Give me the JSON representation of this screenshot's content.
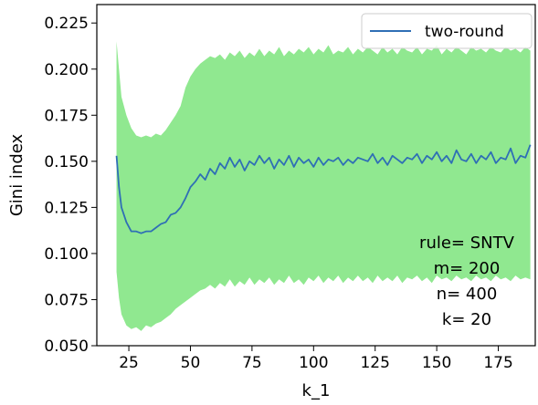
{
  "chart_data": {
    "type": "line",
    "title": "",
    "xlabel": "k_1",
    "ylabel": "Gini index",
    "xlim": [
      12,
      190
    ],
    "ylim": [
      0.05,
      0.235
    ],
    "xticks": [
      25,
      50,
      75,
      100,
      125,
      150,
      175
    ],
    "yticks": [
      0.05,
      0.075,
      0.1,
      0.125,
      0.15,
      0.175,
      0.2,
      0.225
    ],
    "xtick_labels": [
      "25",
      "50",
      "75",
      "100",
      "125",
      "150",
      "175"
    ],
    "ytick_labels": [
      "0.050",
      "0.075",
      "0.100",
      "0.125",
      "0.150",
      "0.175",
      "0.200",
      "0.225"
    ],
    "grid": false,
    "legend": {
      "position": "top-right",
      "entries": [
        "two-round"
      ]
    },
    "colors": {
      "line": "#2f6fb5",
      "band": "#90e890",
      "frame": "#000000"
    },
    "series": [
      {
        "name": "two-round",
        "x": [
          20,
          21,
          22,
          24,
          26,
          28,
          30,
          32,
          34,
          36,
          38,
          40,
          42,
          44,
          46,
          48,
          50,
          52,
          54,
          56,
          58,
          60,
          62,
          64,
          66,
          68,
          70,
          72,
          74,
          76,
          78,
          80,
          82,
          84,
          86,
          88,
          90,
          92,
          94,
          96,
          98,
          100,
          102,
          104,
          106,
          108,
          110,
          112,
          114,
          116,
          118,
          120,
          122,
          124,
          126,
          128,
          130,
          132,
          134,
          136,
          138,
          140,
          142,
          144,
          146,
          148,
          150,
          152,
          154,
          156,
          158,
          160,
          162,
          164,
          166,
          168,
          170,
          172,
          174,
          176,
          178,
          180,
          182,
          184,
          186,
          188
        ],
        "y": [
          0.153,
          0.136,
          0.125,
          0.117,
          0.112,
          0.112,
          0.111,
          0.112,
          0.112,
          0.114,
          0.116,
          0.117,
          0.121,
          0.122,
          0.125,
          0.13,
          0.136,
          0.139,
          0.143,
          0.14,
          0.146,
          0.143,
          0.149,
          0.146,
          0.152,
          0.147,
          0.151,
          0.145,
          0.15,
          0.148,
          0.153,
          0.149,
          0.152,
          0.146,
          0.151,
          0.148,
          0.153,
          0.147,
          0.152,
          0.149,
          0.151,
          0.147,
          0.152,
          0.148,
          0.151,
          0.15,
          0.152,
          0.148,
          0.151,
          0.149,
          0.152,
          0.151,
          0.15,
          0.154,
          0.149,
          0.152,
          0.148,
          0.153,
          0.151,
          0.149,
          0.152,
          0.151,
          0.154,
          0.149,
          0.153,
          0.151,
          0.155,
          0.15,
          0.153,
          0.149,
          0.156,
          0.151,
          0.15,
          0.154,
          0.149,
          0.153,
          0.151,
          0.155,
          0.149,
          0.152,
          0.151,
          0.157,
          0.149,
          0.153,
          0.152,
          0.159
        ],
        "upper": [
          0.215,
          0.2,
          0.185,
          0.175,
          0.168,
          0.164,
          0.163,
          0.164,
          0.163,
          0.165,
          0.164,
          0.167,
          0.171,
          0.175,
          0.18,
          0.19,
          0.196,
          0.2,
          0.203,
          0.205,
          0.207,
          0.206,
          0.208,
          0.205,
          0.209,
          0.207,
          0.21,
          0.206,
          0.209,
          0.207,
          0.211,
          0.207,
          0.21,
          0.208,
          0.212,
          0.207,
          0.21,
          0.208,
          0.211,
          0.209,
          0.212,
          0.208,
          0.211,
          0.209,
          0.213,
          0.208,
          0.21,
          0.209,
          0.212,
          0.208,
          0.211,
          0.209,
          0.212,
          0.21,
          0.208,
          0.212,
          0.209,
          0.211,
          0.208,
          0.212,
          0.21,
          0.209,
          0.212,
          0.208,
          0.211,
          0.21,
          0.213,
          0.208,
          0.211,
          0.209,
          0.212,
          0.21,
          0.208,
          0.212,
          0.21,
          0.211,
          0.209,
          0.212,
          0.21,
          0.209,
          0.212,
          0.21,
          0.211,
          0.209,
          0.212,
          0.21
        ],
        "lower": [
          0.09,
          0.076,
          0.067,
          0.061,
          0.059,
          0.06,
          0.058,
          0.061,
          0.06,
          0.062,
          0.063,
          0.065,
          0.067,
          0.07,
          0.072,
          0.074,
          0.076,
          0.078,
          0.08,
          0.081,
          0.083,
          0.081,
          0.084,
          0.082,
          0.086,
          0.082,
          0.085,
          0.083,
          0.087,
          0.083,
          0.086,
          0.084,
          0.087,
          0.083,
          0.086,
          0.084,
          0.088,
          0.084,
          0.086,
          0.083,
          0.087,
          0.085,
          0.088,
          0.084,
          0.087,
          0.085,
          0.088,
          0.084,
          0.087,
          0.085,
          0.088,
          0.085,
          0.087,
          0.084,
          0.088,
          0.085,
          0.087,
          0.085,
          0.088,
          0.084,
          0.087,
          0.086,
          0.088,
          0.085,
          0.087,
          0.084,
          0.088,
          0.086,
          0.087,
          0.085,
          0.088,
          0.086,
          0.087,
          0.085,
          0.088,
          0.086,
          0.087,
          0.085,
          0.088,
          0.086,
          0.087,
          0.085,
          0.088,
          0.086,
          0.087,
          0.086
        ]
      }
    ],
    "annotations": [
      "rule= SNTV",
      "m= 200",
      "n= 400",
      "k= 20"
    ]
  }
}
